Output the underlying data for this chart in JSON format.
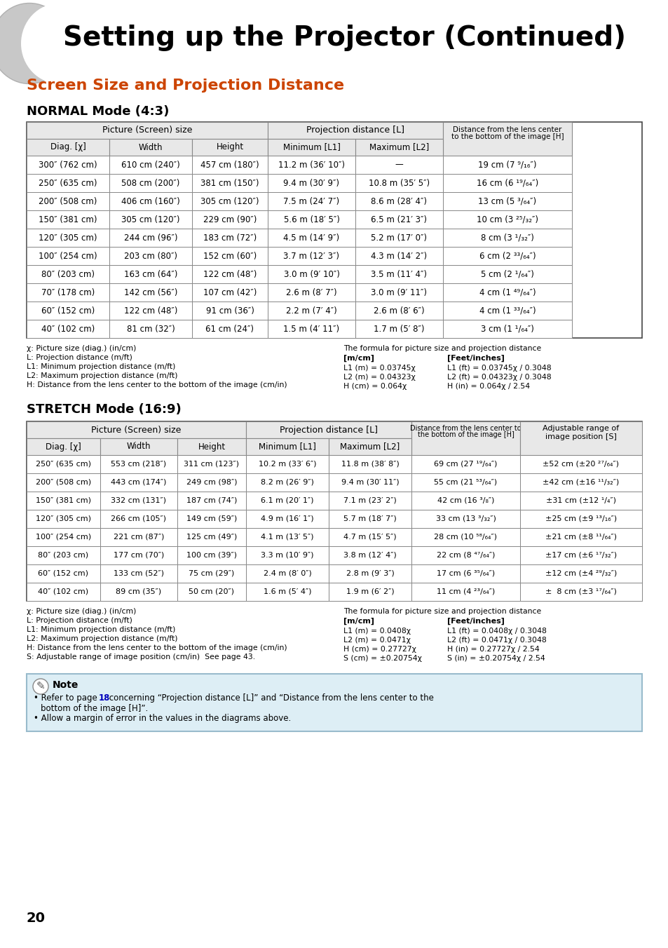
{
  "page_title": "Setting up the Projector (Continued)",
  "section_title": "Screen Size and Projection Distance",
  "title_color": "#cc4400",
  "page_number": "20",
  "normal_mode_title": "NORMAL Mode (4:3)",
  "normal_rows": [
    [
      "300″ (762 cm)",
      "610 cm (240″)",
      "457 cm (180″)",
      "11.2 m (36′ 10″)",
      "—",
      "19 cm (7 ⁹/₁₆″)"
    ],
    [
      "250″ (635 cm)",
      "508 cm (200″)",
      "381 cm (150″)",
      "9.4 m (30′ 9″)",
      "10.8 m (35′ 5″)",
      "16 cm (6 ¹⁹/₆₄″)"
    ],
    [
      "200″ (508 cm)",
      "406 cm (160″)",
      "305 cm (120″)",
      "7.5 m (24′ 7″)",
      "8.6 m (28′ 4″)",
      "13 cm (5 ³/₆₄″)"
    ],
    [
      "150″ (381 cm)",
      "305 cm (120″)",
      "229 cm (90″)",
      "5.6 m (18′ 5″)",
      "6.5 m (21′ 3″)",
      "10 cm (3 ²⁵/₃₂″)"
    ],
    [
      "120″ (305 cm)",
      "244 cm (96″)",
      "183 cm (72″)",
      "4.5 m (14′ 9″)",
      "5.2 m (17′ 0″)",
      "8 cm (3 ¹/₃₂″)"
    ],
    [
      "100″ (254 cm)",
      "203 cm (80″)",
      "152 cm (60″)",
      "3.7 m (12′ 3″)",
      "4.3 m (14′ 2″)",
      "6 cm (2 ³³/₆₄″)"
    ],
    [
      "80″ (203 cm)",
      "163 cm (64″)",
      "122 cm (48″)",
      "3.0 m (9′ 10″)",
      "3.5 m (11′ 4″)",
      "5 cm (2 ¹/₆₄″)"
    ],
    [
      "70″ (178 cm)",
      "142 cm (56″)",
      "107 cm (42″)",
      "2.6 m (8′ 7″)",
      "3.0 m (9′ 11″)",
      "4 cm (1 ⁴⁹/₆₄″)"
    ],
    [
      "60″ (152 cm)",
      "122 cm (48″)",
      "91 cm (36″)",
      "2.2 m (7′ 4″)",
      "2.6 m (8′ 6″)",
      "4 cm (1 ³³/₆₄″)"
    ],
    [
      "40″ (102 cm)",
      "81 cm (32″)",
      "61 cm (24″)",
      "1.5 m (4′ 11″)",
      "1.7 m (5′ 8″)",
      "3 cm (1 ¹/₆₄″)"
    ]
  ],
  "normal_notes_left": [
    "χ: Picture size (diag.) (in/cm)",
    "L: Projection distance (m/ft)",
    "L1: Minimum projection distance (m/ft)",
    "L2: Maximum projection distance (m/ft)",
    "H: Distance from the lens center to the bottom of the image (cm/in)"
  ],
  "normal_formula_title": "The formula for picture size and projection distance",
  "normal_formula_mcm_header": "[m/cm]",
  "normal_formula_feet_header": "[Feet/inches]",
  "normal_formula_mcm": [
    "L1 (m) = 0.03745χ",
    "L2 (m) = 0.04323χ",
    "H (cm) = 0.064χ"
  ],
  "normal_formula_feet": [
    "L1 (ft) = 0.03745χ / 0.3048",
    "L2 (ft) = 0.04323χ / 0.3048",
    "H (in) = 0.064χ / 2.54"
  ],
  "stretch_mode_title": "STRETCH Mode (16:9)",
  "stretch_rows": [
    [
      "250″ (635 cm)",
      "553 cm (218″)",
      "311 cm (123″)",
      "10.2 m (33′ 6″)",
      "11.8 m (38′ 8″)",
      "69 cm (27 ¹⁹/₆₄″)",
      "±52 cm (±20 ²⁷/₆₄″)"
    ],
    [
      "200″ (508 cm)",
      "443 cm (174″)",
      "249 cm (98″)",
      "8.2 m (26′ 9″)",
      "9.4 m (30′ 11″)",
      "55 cm (21 ⁵³/₆₄″)",
      "±42 cm (±16 ¹¹/₃₂″)"
    ],
    [
      "150″ (381 cm)",
      "332 cm (131″)",
      "187 cm (74″)",
      "6.1 m (20′ 1″)",
      "7.1 m (23′ 2″)",
      "42 cm (16 ³/₈″)",
      "±31 cm (±12 ¹/₄″)"
    ],
    [
      "120″ (305 cm)",
      "266 cm (105″)",
      "149 cm (59″)",
      "4.9 m (16′ 1″)",
      "5.7 m (18′ 7″)",
      "33 cm (13 ³/₃₂″)",
      "±25 cm (±9 ¹³/₁₆″)"
    ],
    [
      "100″ (254 cm)",
      "221 cm (87″)",
      "125 cm (49″)",
      "4.1 m (13′ 5″)",
      "4.7 m (15′ 5″)",
      "28 cm (10 ⁵⁸/₆₄″)",
      "±21 cm (±8 ¹¹/₆₄″)"
    ],
    [
      "80″ (203 cm)",
      "177 cm (70″)",
      "100 cm (39″)",
      "3.3 m (10′ 9″)",
      "3.8 m (12′ 4″)",
      "22 cm (8 ⁴⁷/₆₄″)",
      "±17 cm (±6 ¹⁷/₃₂″)"
    ],
    [
      "60″ (152 cm)",
      "133 cm (52″)",
      "75 cm (29″)",
      "2.4 m (8′ 0″)",
      "2.8 m (9′ 3″)",
      "17 cm (6 ³⁵/₆₄″)",
      "±12 cm (±4 ²⁹/₃₂″)"
    ],
    [
      "40″ (102 cm)",
      "89 cm (35″)",
      "50 cm (20″)",
      "1.6 m (5′ 4″)",
      "1.9 m (6′ 2″)",
      "11 cm (4 ²³/₆₄″)",
      "±  8 cm (±3 ¹⁷/₆₄″)"
    ]
  ],
  "stretch_notes_left": [
    "χ: Picture size (diag.) (in/cm)",
    "L: Projection distance (m/ft)",
    "L1: Minimum projection distance (m/ft)",
    "L2: Maximum projection distance (m/ft)",
    "H: Distance from the lens center to the bottom of the image (cm/in)",
    "S: Adjustable range of image position (cm/in)  See page 43."
  ],
  "stretch_formula_title": "The formula for picture size and projection distance",
  "stretch_formula_mcm_header": "[m/cm]",
  "stretch_formula_feet_header": "[Feet/inches]",
  "stretch_formula_mcm": [
    "L1 (m) = 0.0408χ",
    "L2 (m) = 0.0471χ",
    "H (cm) = 0.27727χ",
    "S (cm) = ±0.20754χ"
  ],
  "stretch_formula_feet": [
    "L1 (ft) = 0.0408χ / 0.3048",
    "L2 (ft) = 0.0471χ / 0.3048",
    "H (in) = 0.27727χ / 2.54",
    "S (in) = ±0.20754χ / 2.54"
  ],
  "note_bg_color": "#ddeef5",
  "note_border_color": "#99bbcc",
  "table_bg_header": "#e8e8e8",
  "table_border": "#888888",
  "table_border_dark": "#444444"
}
